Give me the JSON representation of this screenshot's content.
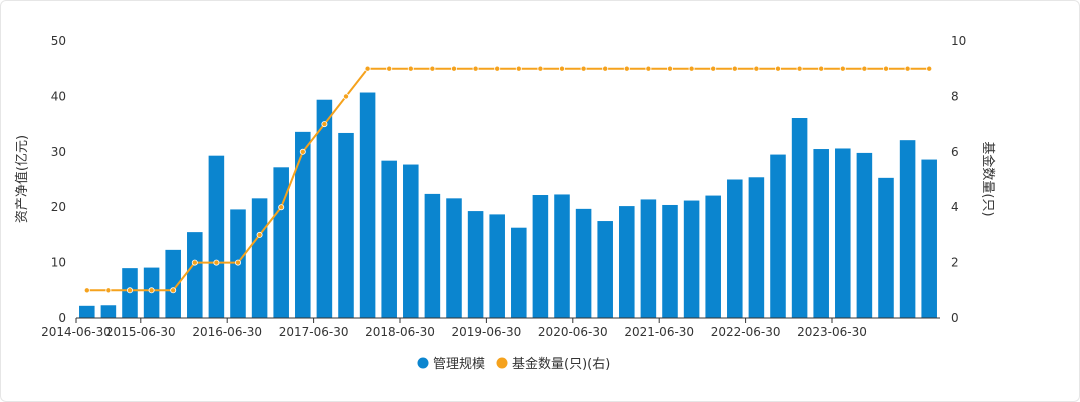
{
  "chart_data": {
    "type": "bar+line",
    "left_axis": {
      "label": "资产净值(亿元)",
      "ticks": [
        "0",
        "10",
        "20",
        "30",
        "40",
        "50"
      ],
      "range": [
        0,
        50
      ]
    },
    "right_axis": {
      "label": "基金数量(只)",
      "ticks": [
        "0",
        "2",
        "4",
        "6",
        "8",
        "10"
      ],
      "range": [
        0,
        10
      ]
    },
    "x_tick_labels": [
      "2014-06-30",
      "2015-06-30",
      "2016-06-30",
      "2017-06-30",
      "2018-06-30",
      "2019-06-30",
      "2020-06-30",
      "2021-06-30",
      "2022-06-30",
      "2023-06-30"
    ],
    "x_tick_positions": [
      0,
      3,
      7,
      11,
      15,
      19,
      23,
      27,
      31,
      35
    ],
    "series": [
      {
        "name": "管理规模",
        "type": "bar",
        "axis": "left",
        "color": "#0b85cf",
        "values": [
          2.2,
          2.3,
          9.0,
          9.1,
          12.3,
          15.5,
          29.3,
          19.6,
          21.6,
          27.2,
          33.6,
          39.4,
          33.4,
          40.7,
          28.4,
          27.7,
          22.4,
          21.6,
          19.3,
          18.7,
          16.3,
          22.2,
          22.3,
          19.7,
          17.5,
          20.2,
          21.4,
          20.4,
          21.2,
          22.1,
          25.0,
          25.4,
          29.5,
          36.1,
          30.5,
          30.6,
          29.8,
          25.3,
          32.1,
          28.6
        ]
      },
      {
        "name": "基金数量(只)(右)",
        "type": "line",
        "axis": "right",
        "color": "#f5a21d",
        "values": [
          1,
          1,
          1,
          1,
          1,
          2,
          2,
          2,
          3,
          4,
          6,
          7,
          8,
          9,
          9,
          9,
          9,
          9,
          9,
          9,
          9,
          9,
          9,
          9,
          9,
          9,
          9,
          9,
          9,
          9,
          9,
          9,
          9,
          9,
          9,
          9,
          9,
          9,
          9,
          9
        ]
      }
    ],
    "legend_position": "bottom-center",
    "grid": false
  }
}
